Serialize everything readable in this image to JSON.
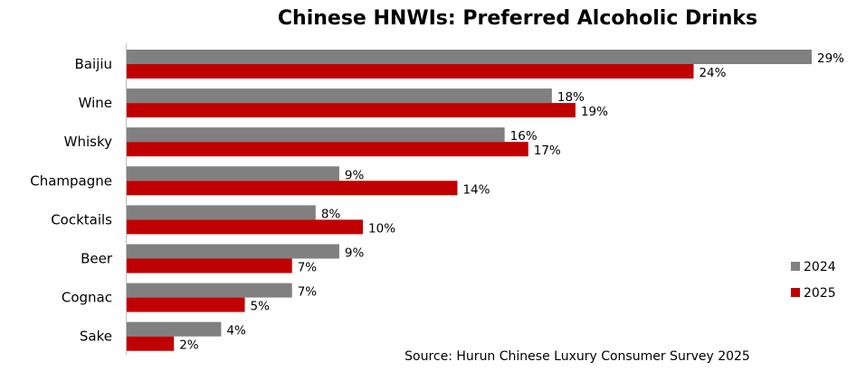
{
  "chart_data": {
    "type": "bar",
    "orientation": "horizontal",
    "title": "Chinese HNWIs: Preferred Alcoholic Drinks",
    "categories": [
      "Baijiu",
      "Wine",
      "Whisky",
      "Champagne",
      "Cocktails",
      "Beer",
      "Cognac",
      "Sake"
    ],
    "series": [
      {
        "name": "2024",
        "color": "#808080",
        "values": [
          29,
          18,
          16,
          9,
          8,
          9,
          7,
          4
        ]
      },
      {
        "name": "2025",
        "color": "#C00000",
        "values": [
          24,
          19,
          17,
          14,
          10,
          7,
          5,
          2
        ]
      }
    ],
    "value_suffix": "%",
    "xlim": [
      0,
      30
    ],
    "grid": false,
    "legend_position": "right",
    "source": "Source: Hurun Chinese Luxury Consumer Survey 2025"
  }
}
